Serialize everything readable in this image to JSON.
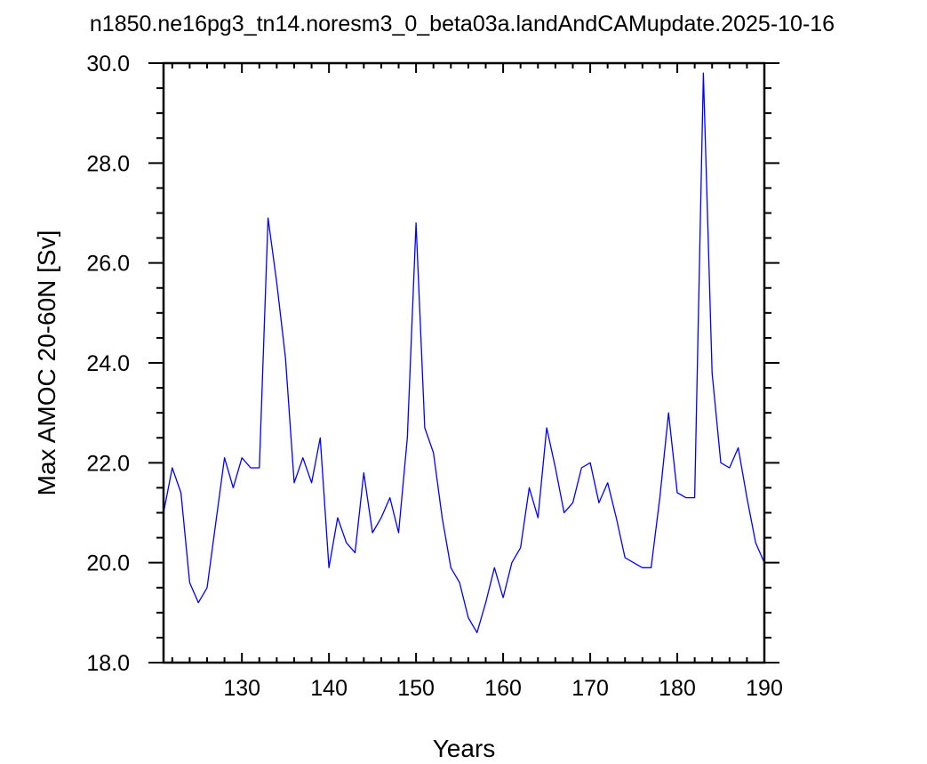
{
  "chart_data": {
    "type": "line",
    "title": "n1850.ne16pg3_tn14.noresm3_0_beta03a.landAndCAMupdate.2025-10-16",
    "xlabel": "Years",
    "ylabel": "Max AMOC 20-60N [Sv]",
    "xlim": [
      121,
      190
    ],
    "ylim": [
      18.0,
      30.0
    ],
    "x_ticks": [
      "130",
      "140",
      "150",
      "160",
      "170",
      "180",
      "190"
    ],
    "y_ticks": [
      "18.0",
      "20.0",
      "22.0",
      "24.0",
      "26.0",
      "28.0",
      "30.0"
    ],
    "grid": false,
    "line_color": "#0000ff",
    "series": [
      {
        "x": [
          121,
          122,
          123,
          124,
          125,
          126,
          127,
          128,
          129,
          130,
          131,
          132,
          133,
          134,
          135,
          136,
          137,
          138,
          139,
          140,
          141,
          142,
          143,
          144,
          145,
          146,
          147,
          148,
          149,
          150,
          151,
          152,
          153,
          154,
          155,
          156,
          157,
          158,
          159,
          160,
          161,
          162,
          163,
          164,
          165,
          166,
          167,
          168,
          169,
          170,
          171,
          172,
          173,
          174,
          175,
          176,
          177,
          178,
          179,
          180,
          181,
          182,
          183,
          184,
          185,
          186,
          187,
          188,
          189,
          190
        ],
        "values": [
          21.0,
          21.9,
          21.4,
          19.6,
          19.2,
          19.5,
          20.8,
          22.1,
          21.5,
          22.1,
          21.9,
          21.9,
          26.9,
          25.6,
          24.1,
          21.6,
          22.1,
          21.6,
          22.5,
          19.9,
          20.9,
          20.4,
          20.2,
          21.8,
          20.6,
          20.9,
          21.3,
          20.6,
          22.5,
          26.8,
          22.7,
          22.2,
          20.9,
          19.9,
          19.6,
          18.9,
          18.6,
          19.2,
          19.9,
          19.3,
          20.0,
          20.3,
          21.5,
          20.9,
          22.7,
          21.9,
          21.0,
          21.2,
          21.9,
          22.0,
          21.2,
          21.6,
          20.9,
          20.1,
          20.0,
          19.9,
          19.9,
          21.3,
          23.0,
          21.4,
          21.3,
          21.3,
          29.8,
          23.8,
          22.0,
          21.9,
          22.3,
          21.3,
          20.4,
          20.0
        ]
      }
    ]
  }
}
